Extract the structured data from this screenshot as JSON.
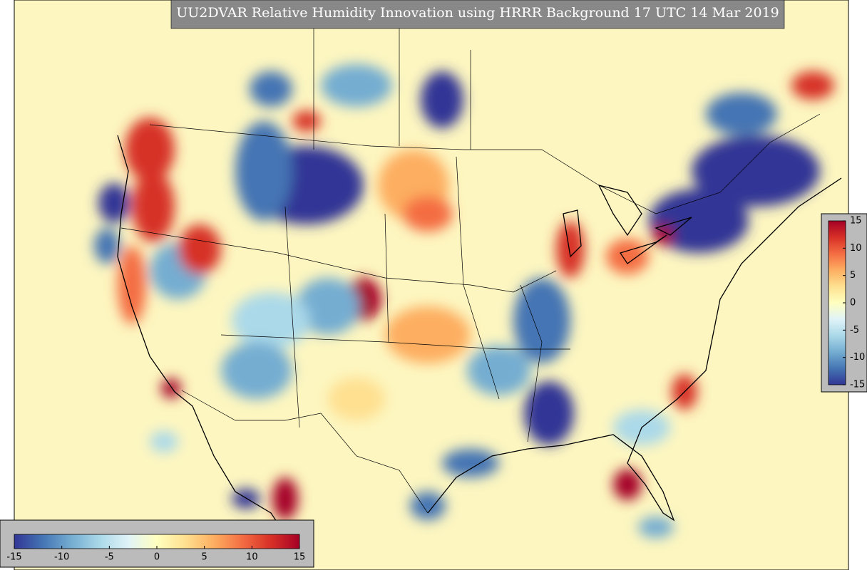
{
  "title": "UU2DVAR Relative Humidity Innovation using HRRR Background 17 UTC 14 Mar 2019",
  "colormap": [
    "#313695",
    "#4575b4",
    "#74add1",
    "#abd9e9",
    "#e0f3f8",
    "#ffffbf",
    "#fee090",
    "#fdae61",
    "#f46d43",
    "#d73027",
    "#a50026"
  ],
  "colorbars": [
    {
      "orientation": "horizontal",
      "lim": [
        -15,
        15
      ],
      "ticks": [
        -15,
        -10,
        -5,
        0,
        5,
        10,
        15
      ]
    },
    {
      "orientation": "vertical",
      "lim": [
        -15,
        15
      ],
      "ticks": [
        -15,
        -10,
        -5,
        0,
        5,
        10,
        15
      ]
    }
  ]
}
